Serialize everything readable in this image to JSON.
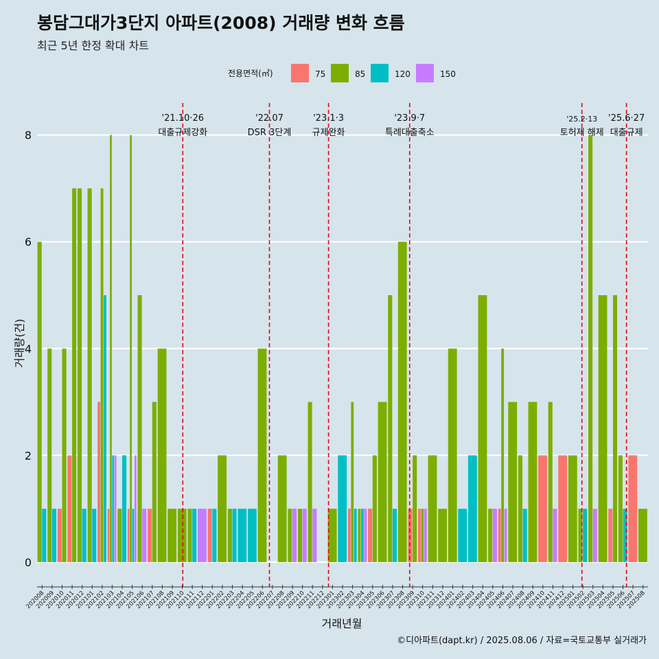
{
  "colors": {
    "background": "#d6e4ec",
    "grid": "#ffffff",
    "event_line": "#e8000b",
    "s75": "#f8766d",
    "s85": "#7cae00",
    "s120": "#00bfc4",
    "s150": "#c77cff"
  },
  "chart_data": {
    "type": "bar",
    "title": "봉담그대가3단지 아파트(2008) 거래량 변화 흐름",
    "subtitle": "최근 5년 한정 확대 차트",
    "xlabel": "거래년월",
    "ylabel": "거래량(건)",
    "ylim": [
      -0.4,
      8.6
    ],
    "yticks": [
      0,
      2,
      4,
      6,
      8
    ],
    "legend": {
      "title": "전용면적(㎡)",
      "position": "top",
      "labels": [
        "75",
        "85",
        "120",
        "150"
      ]
    },
    "caption": "©디아파트(dapt.kr) / 2025.08.06 / 자료=국토교통부 실거래가",
    "months": [
      "202008",
      "202009",
      "202010",
      "202011",
      "202012",
      "202101",
      "202102",
      "202103",
      "202104",
      "202105",
      "202106",
      "202107",
      "202108",
      "202109",
      "202110",
      "202111",
      "202112",
      "202201",
      "202202",
      "202203",
      "202204",
      "202205",
      "202206",
      "202207",
      "202208",
      "202209",
      "202210",
      "202211",
      "202212",
      "202301",
      "202302",
      "202303",
      "202304",
      "202305",
      "202306",
      "202307",
      "202308",
      "202309",
      "202310",
      "202311",
      "202312",
      "202401",
      "202402",
      "202403",
      "202404",
      "202405",
      "202406",
      "202407",
      "202408",
      "202409",
      "202410",
      "202411",
      "202412",
      "202501",
      "202502",
      "202503",
      "202504",
      "202505",
      "202506",
      "202507",
      "202508"
    ],
    "series": [
      {
        "name": "75",
        "values": [
          0,
          0,
          1,
          2,
          0,
          0,
          3,
          1,
          0,
          1,
          0,
          1,
          0,
          0,
          0,
          0,
          0,
          1,
          0,
          0,
          0,
          0,
          0,
          0,
          0,
          0,
          0,
          0,
          0,
          0,
          0,
          1,
          0,
          1,
          0,
          0,
          0,
          1,
          1,
          0,
          0,
          0,
          0,
          0,
          0,
          0,
          1,
          0,
          0,
          0,
          2,
          0,
          2,
          0,
          0,
          0,
          0,
          1,
          0,
          2,
          0
        ]
      },
      {
        "name": "85",
        "values": [
          6,
          4,
          4,
          7,
          7,
          7,
          7,
          8,
          1,
          8,
          5,
          3,
          4,
          1,
          1,
          1,
          0,
          0,
          2,
          1,
          0,
          0,
          4,
          0,
          2,
          1,
          1,
          3,
          0,
          1,
          0,
          3,
          1,
          2,
          3,
          5,
          6,
          2,
          1,
          2,
          1,
          4,
          0,
          0,
          5,
          1,
          4,
          3,
          2,
          3,
          0,
          3,
          0,
          2,
          1,
          8,
          5,
          5,
          2,
          0,
          1
        ]
      },
      {
        "name": "120",
        "values": [
          1,
          1,
          0,
          0,
          1,
          1,
          5,
          2,
          2,
          1,
          0,
          0,
          0,
          0,
          0,
          1,
          0,
          1,
          0,
          1,
          1,
          1,
          0,
          0,
          0,
          0,
          0,
          0,
          0,
          0,
          2,
          1,
          1,
          0,
          0,
          1,
          0,
          0,
          0,
          0,
          0,
          0,
          1,
          2,
          0,
          0,
          0,
          0,
          1,
          0,
          0,
          0,
          0,
          0,
          1,
          0,
          0,
          0,
          1,
          0,
          0
        ]
      },
      {
        "name": "150",
        "values": [
          0,
          0,
          0,
          0,
          0,
          0,
          0,
          2,
          0,
          2,
          1,
          0,
          0,
          0,
          0,
          0,
          1,
          0,
          0,
          0,
          0,
          0,
          0,
          0,
          0,
          1,
          1,
          1,
          0,
          0,
          0,
          0,
          1,
          0,
          0,
          0,
          0,
          0,
          1,
          0,
          0,
          0,
          0,
          0,
          0,
          1,
          1,
          0,
          0,
          0,
          0,
          1,
          0,
          0,
          0,
          1,
          0,
          0,
          0,
          0,
          0
        ]
      }
    ],
    "events": [
      {
        "month": "202110",
        "offset": 0.55,
        "date": "'21.10·26",
        "label": "대출규제강화"
      },
      {
        "month": "202207",
        "offset": 0.2,
        "date": "'22.07",
        "label": "DSR 3단계"
      },
      {
        "month": "202301",
        "offset": 0.1,
        "date": "'23.1·3",
        "label": "규제완화"
      },
      {
        "month": "202309",
        "offset": 0.2,
        "date": "'23.9·7",
        "label": "특례대출축소"
      },
      {
        "month": "202502",
        "offset": 0.4,
        "date": "'25.2·13",
        "label": "토허제 해제"
      },
      {
        "month": "202506",
        "offset": 0.85,
        "date": "'25.6·27",
        "label": "대출규제"
      }
    ]
  }
}
